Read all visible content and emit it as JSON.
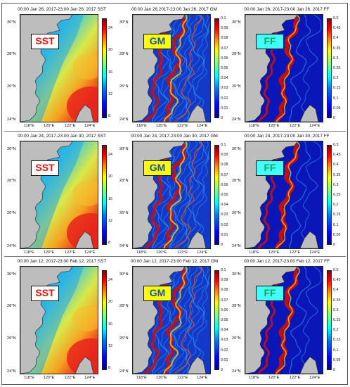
{
  "colors": {
    "land": "#bdbdbd",
    "sst_cold": "#1f8fd0",
    "sst_mid": "#d8e84a",
    "sst_hot": "#e8261c",
    "gm_ocean": "#1438c8",
    "front": "#c8100a",
    "ff_ocean": "#0a16b8",
    "label_sst": "#e01010",
    "label_gm": "#1050d0",
    "label_ff": "#1aa05a"
  },
  "latitude_ticks": [
    "30°N",
    "28°N",
    "26°N",
    "24°N"
  ],
  "longitude_ticks": [
    "118°E",
    "120°E",
    "122°E",
    "124°E"
  ],
  "colorbars": {
    "sst": [
      "24",
      "20",
      "16",
      "12",
      "8"
    ],
    "gm": [
      "0.1",
      "0.09",
      "0.08",
      "0.07",
      "0.06",
      "0.05",
      "0.04",
      "0.03",
      "0.02",
      "0.01",
      "0"
    ],
    "ff": [
      "0.5",
      "0.45",
      "0.4",
      "0.35",
      "0.3",
      "0.25",
      "0.2",
      "0.15",
      "0.1",
      "0.05",
      "0"
    ]
  },
  "rows": [
    {
      "sst": {
        "title": "00:00 Jan 26, 2017-23:00 Jan 26, 2017 SST",
        "label": "SST"
      },
      "gm": {
        "title": "00:00 Jan 26,2017-23:00 Jan 26, 2017 GM",
        "label": "GM"
      },
      "ff": {
        "title": "00:00 Jan 26, 2017-23:00 Jan 26, 2017 FF",
        "label": "FF"
      }
    },
    {
      "sst": {
        "title": "00:00 Jan 24, 2017-23:00 Jan 30, 2017 SST",
        "label": "SST"
      },
      "gm": {
        "title": "00:00 Jan 24, 2017-23:00 Jan 30, 2017 GM",
        "label": "GM"
      },
      "ff": {
        "title": "00:00 Jan 24, 2017-23:00 Jan 30, 2017 FF",
        "label": "FF"
      }
    },
    {
      "sst": {
        "title": "00:00 Jan 12, 2017-23:00 Feb 12, 2017 SST",
        "label": "SST"
      },
      "gm": {
        "title": "00:00 Jan 12, 2017-23:00 Feb 12, 2017 GM",
        "label": "GM"
      },
      "ff": {
        "title": "00:00 Jan 12, 2017-23:00 Feb 12, 2017 FF",
        "label": "FF"
      }
    }
  ]
}
